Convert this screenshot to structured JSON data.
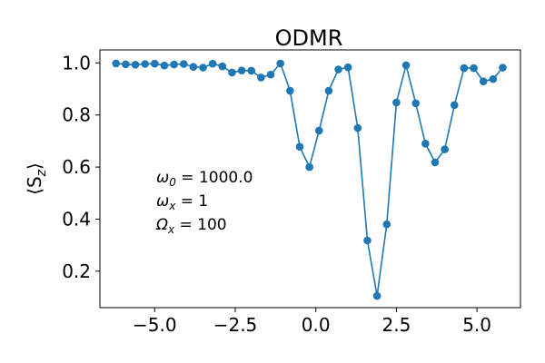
{
  "chart_data": {
    "type": "line",
    "title": "ODMR",
    "xlabel": "",
    "ylabel": "⟨S",
    "ylabel_sub": "z",
    "ylabel_close": "⟩",
    "xlim": [
      -6.7,
      6.35
    ],
    "ylim": [
      0.06,
      1.05
    ],
    "x_ticks": [
      -5.0,
      -2.5,
      0.0,
      2.5,
      5.0
    ],
    "x_tick_labels": [
      "−5.0",
      "−2.5",
      "0.0",
      "2.5",
      "5.0"
    ],
    "y_ticks": [
      0.2,
      0.4,
      0.6,
      0.8,
      1.0
    ],
    "y_tick_labels": [
      "0.2",
      "0.4",
      "0.6",
      "0.8",
      "1.0"
    ],
    "grid": false,
    "series": [
      {
        "color": "#1f77b4",
        "marker": "circle",
        "x": [
          -6.2,
          -5.9,
          -5.6,
          -5.3,
          -5.0,
          -4.7,
          -4.4,
          -4.1,
          -3.8,
          -3.5,
          -3.2,
          -2.9,
          -2.6,
          -2.3,
          -2.0,
          -1.7,
          -1.4,
          -1.1,
          -0.8,
          -0.5,
          -0.2,
          0.1,
          0.4,
          0.7,
          1.0,
          1.3,
          1.6,
          1.9,
          2.2,
          2.5,
          2.8,
          3.1,
          3.4,
          3.7,
          4.0,
          4.3,
          4.6,
          4.9,
          5.2,
          5.5,
          5.8
        ],
        "y": [
          0.998,
          0.995,
          0.993,
          0.996,
          0.997,
          0.99,
          0.994,
          0.996,
          0.985,
          0.982,
          0.997,
          0.987,
          0.963,
          0.971,
          0.97,
          0.944,
          0.955,
          0.998,
          0.893,
          0.678,
          0.6,
          0.74,
          0.893,
          0.975,
          0.983,
          0.75,
          0.318,
          0.105,
          0.38,
          0.848,
          0.991,
          0.845,
          0.69,
          0.618,
          0.668,
          0.838,
          0.98,
          0.98,
          0.929,
          0.938,
          0.982
        ]
      }
    ],
    "annotations": [
      {
        "symbol": "ω",
        "sub": "0",
        "rest": " = 1000.0"
      },
      {
        "symbol": "ω",
        "sub": "x",
        "rest": " = 1"
      },
      {
        "symbol": "Ω",
        "sub": "x",
        "rest": " = 100"
      }
    ]
  }
}
